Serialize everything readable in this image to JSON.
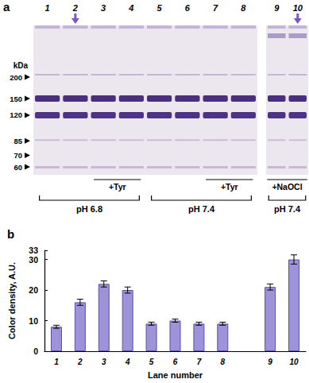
{
  "gel": {
    "panel_label": "a",
    "unit": "kDa",
    "markers": [
      200,
      150,
      120,
      85,
      70,
      60
    ],
    "lanes": [
      "1",
      "2",
      "3",
      "4",
      "5",
      "6",
      "7",
      "8",
      "9",
      "10"
    ],
    "arrow_lanes": [
      "2",
      "10"
    ],
    "treatments": [
      {
        "label": "+Tyr",
        "lanes": [
          "3",
          "4"
        ]
      },
      {
        "label": "+Tyr",
        "lanes": [
          "7",
          "8"
        ]
      },
      {
        "label": "+NaOCl",
        "lanes": [
          "9",
          "10"
        ]
      }
    ],
    "conditions": [
      {
        "label": "pH 6.8",
        "lanes": [
          "1",
          "2",
          "3",
          "4"
        ]
      },
      {
        "label": "pH 7.4",
        "lanes": [
          "5",
          "6",
          "7",
          "8"
        ]
      },
      {
        "label": "pH 7.4",
        "lanes": [
          "9",
          "10"
        ]
      }
    ]
  },
  "chart_data": {
    "type": "bar",
    "title": "b",
    "x_label": "Lane number",
    "y_label": "Color density, A.U.",
    "categories": [
      "1",
      "2",
      "3",
      "4",
      "5",
      "6",
      "7",
      "8",
      null,
      "9",
      "10"
    ],
    "values": [
      8,
      16,
      22,
      20,
      9,
      10,
      9,
      9,
      null,
      21,
      30
    ],
    "errors": [
      0.5,
      1,
      1,
      1,
      0.5,
      0.5,
      0.5,
      0.5,
      null,
      1,
      1.5
    ],
    "color": "#9d93d8",
    "ylim": [
      0,
      33
    ],
    "yticks": [
      0,
      10,
      20,
      30
    ],
    "grid": false
  }
}
